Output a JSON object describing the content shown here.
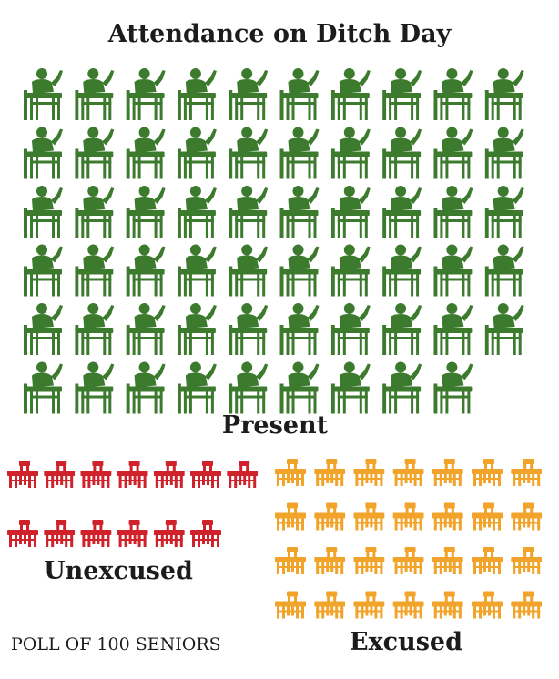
{
  "title": "Attendance on Ditch Day",
  "footnote": "POLL OF 100 SENIORS",
  "chart_data": {
    "type": "pictograph",
    "title": "Attendance on Ditch Day",
    "unit": "1 icon = 1 senior",
    "total": 100,
    "categories": [
      "Present",
      "Unexcused",
      "Excused"
    ],
    "values": [
      59,
      13,
      28
    ],
    "icons": [
      "student-at-desk",
      "empty-desk",
      "empty-desk"
    ],
    "colors": [
      "#3c7a2e",
      "#d0222b",
      "#f2a32a"
    ],
    "annotation": "POLL OF 100 SENIORS"
  }
}
